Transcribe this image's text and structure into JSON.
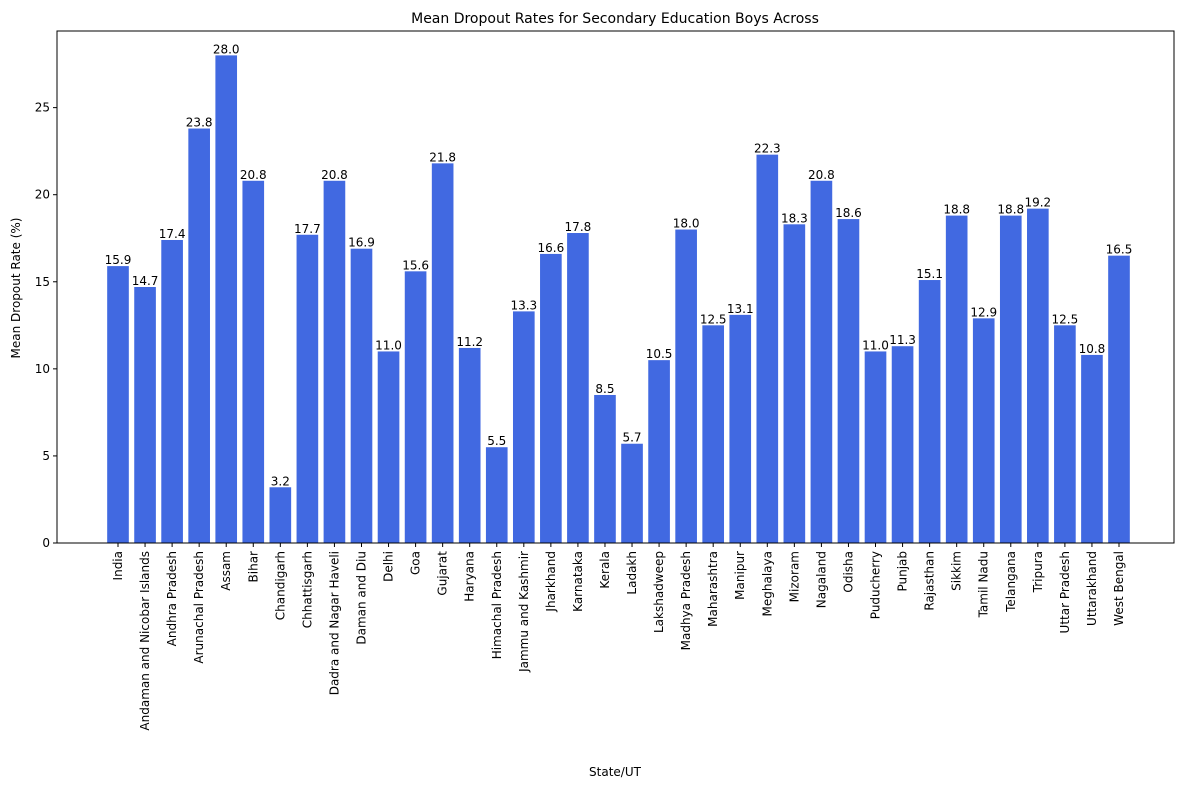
{
  "chart_data": {
    "type": "bar",
    "title": "Mean Dropout Rates for Secondary Education Boys Across",
    "xlabel": "State/UT",
    "ylabel": "Mean Dropout Rate (%)",
    "ylim": [
      0,
      29.4
    ],
    "yticks": [
      0,
      5,
      10,
      15,
      20,
      25
    ],
    "grid": false,
    "legend": "none",
    "bar_color": "#4169e1",
    "categories": [
      "India",
      "Andaman and Nicobar Islands",
      "Andhra Pradesh",
      "Arunachal Pradesh",
      "Assam",
      "Bihar",
      "Chandigarh",
      "Chhattisgarh",
      "Dadra and Nagar Haveli",
      "Daman and Diu",
      "Delhi",
      "Goa",
      "Gujarat",
      "Haryana",
      "Himachal Pradesh",
      "Jammu and Kashmir",
      "Jharkhand",
      "Karnataka",
      "Kerala",
      "Ladakh",
      "Lakshadweep",
      "Madhya Pradesh",
      "Maharashtra",
      "Manipur",
      "Meghalaya",
      "Mizoram",
      "Nagaland",
      "Odisha",
      "Puducherry",
      "Punjab",
      "Rajasthan",
      "Sikkim",
      "Tamil Nadu",
      "Telangana",
      "Tripura",
      "Uttar Pradesh",
      "Uttarakhand",
      "West Bengal"
    ],
    "values": [
      15.9,
      14.7,
      17.4,
      23.8,
      28.0,
      20.8,
      3.2,
      17.7,
      20.8,
      16.9,
      11.0,
      15.6,
      21.8,
      11.2,
      5.5,
      13.3,
      16.6,
      17.8,
      8.5,
      5.7,
      10.5,
      18.0,
      12.5,
      13.1,
      22.3,
      18.3,
      20.8,
      18.6,
      11.0,
      11.3,
      15.1,
      18.8,
      12.9,
      18.8,
      19.2,
      12.5,
      10.8,
      16.5
    ],
    "value_labels": [
      "15.9",
      "14.7",
      "17.4",
      "23.8",
      "28.0",
      "20.8",
      "3.2",
      "17.7",
      "20.8",
      "16.9",
      "11.0",
      "15.6",
      "21.8",
      "11.2",
      "5.5",
      "13.3",
      "16.6",
      "17.8",
      "8.5",
      "5.7",
      "10.5",
      "18.0",
      "12.5",
      "13.1",
      "22.3",
      "18.3",
      "20.8",
      "18.6",
      "11.0",
      "11.3",
      "15.1",
      "18.8",
      "12.9",
      "18.8",
      "19.2",
      "12.5",
      "10.8",
      "16.5"
    ]
  }
}
